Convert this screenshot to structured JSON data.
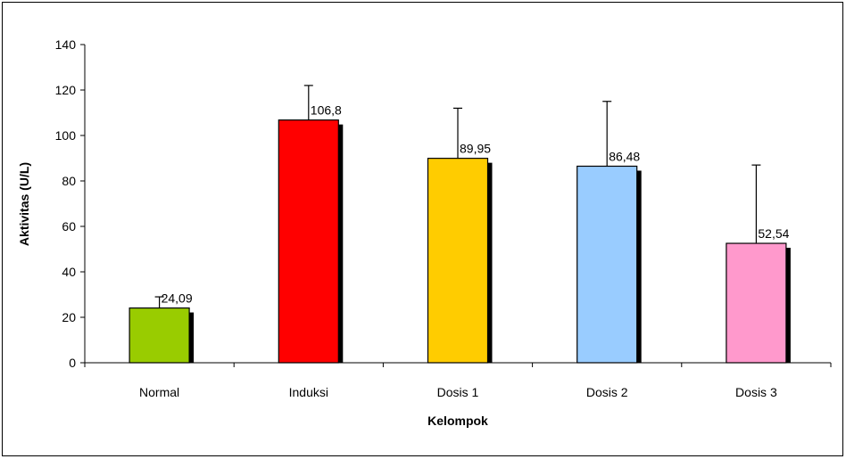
{
  "chart_data": {
    "type": "bar",
    "title": "",
    "xlabel": "Kelompok",
    "ylabel": "Aktivitas (U/L)",
    "ylim": [
      0,
      140
    ],
    "yticks": [
      "0",
      "20",
      "40",
      "60",
      "80",
      "100",
      "120",
      "140"
    ],
    "grid": false,
    "legend": "none",
    "categories": [
      "Normal",
      "Induksi",
      "Dosis 1",
      "Dosis 2",
      "Dosis 3"
    ],
    "values": [
      24.09,
      106.8,
      89.95,
      86.48,
      52.54
    ],
    "value_labels": [
      "24,09",
      "106,8",
      "89,95",
      "86,48",
      "52,54"
    ],
    "error_upper": [
      29,
      122,
      112,
      115,
      87
    ],
    "colors": [
      "#99cc00",
      "#ff0000",
      "#ffcc00",
      "#99ccff",
      "#ff99cc"
    ],
    "shadow_color": "#000000"
  }
}
